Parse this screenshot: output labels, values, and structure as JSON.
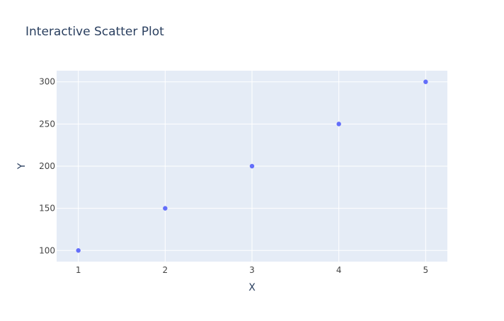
{
  "chart_data": {
    "type": "scatter",
    "title": "Interactive Scatter Plot",
    "xlabel": "X",
    "ylabel": "Y",
    "x": [
      1,
      2,
      3,
      4,
      5
    ],
    "y": [
      100,
      150,
      200,
      250,
      300
    ],
    "xlim": [
      0.75,
      5.25
    ],
    "ylim": [
      86.8,
      313.2
    ],
    "xticks": [
      1,
      2,
      3,
      4,
      5
    ],
    "yticks": [
      100,
      150,
      200,
      250,
      300
    ],
    "grid": true,
    "colors": {
      "plot_bg": "#e5ecf6",
      "grid": "#ffffff",
      "marker": "#636efa",
      "text": "#2a3f5f",
      "tick_text": "#444444"
    }
  }
}
